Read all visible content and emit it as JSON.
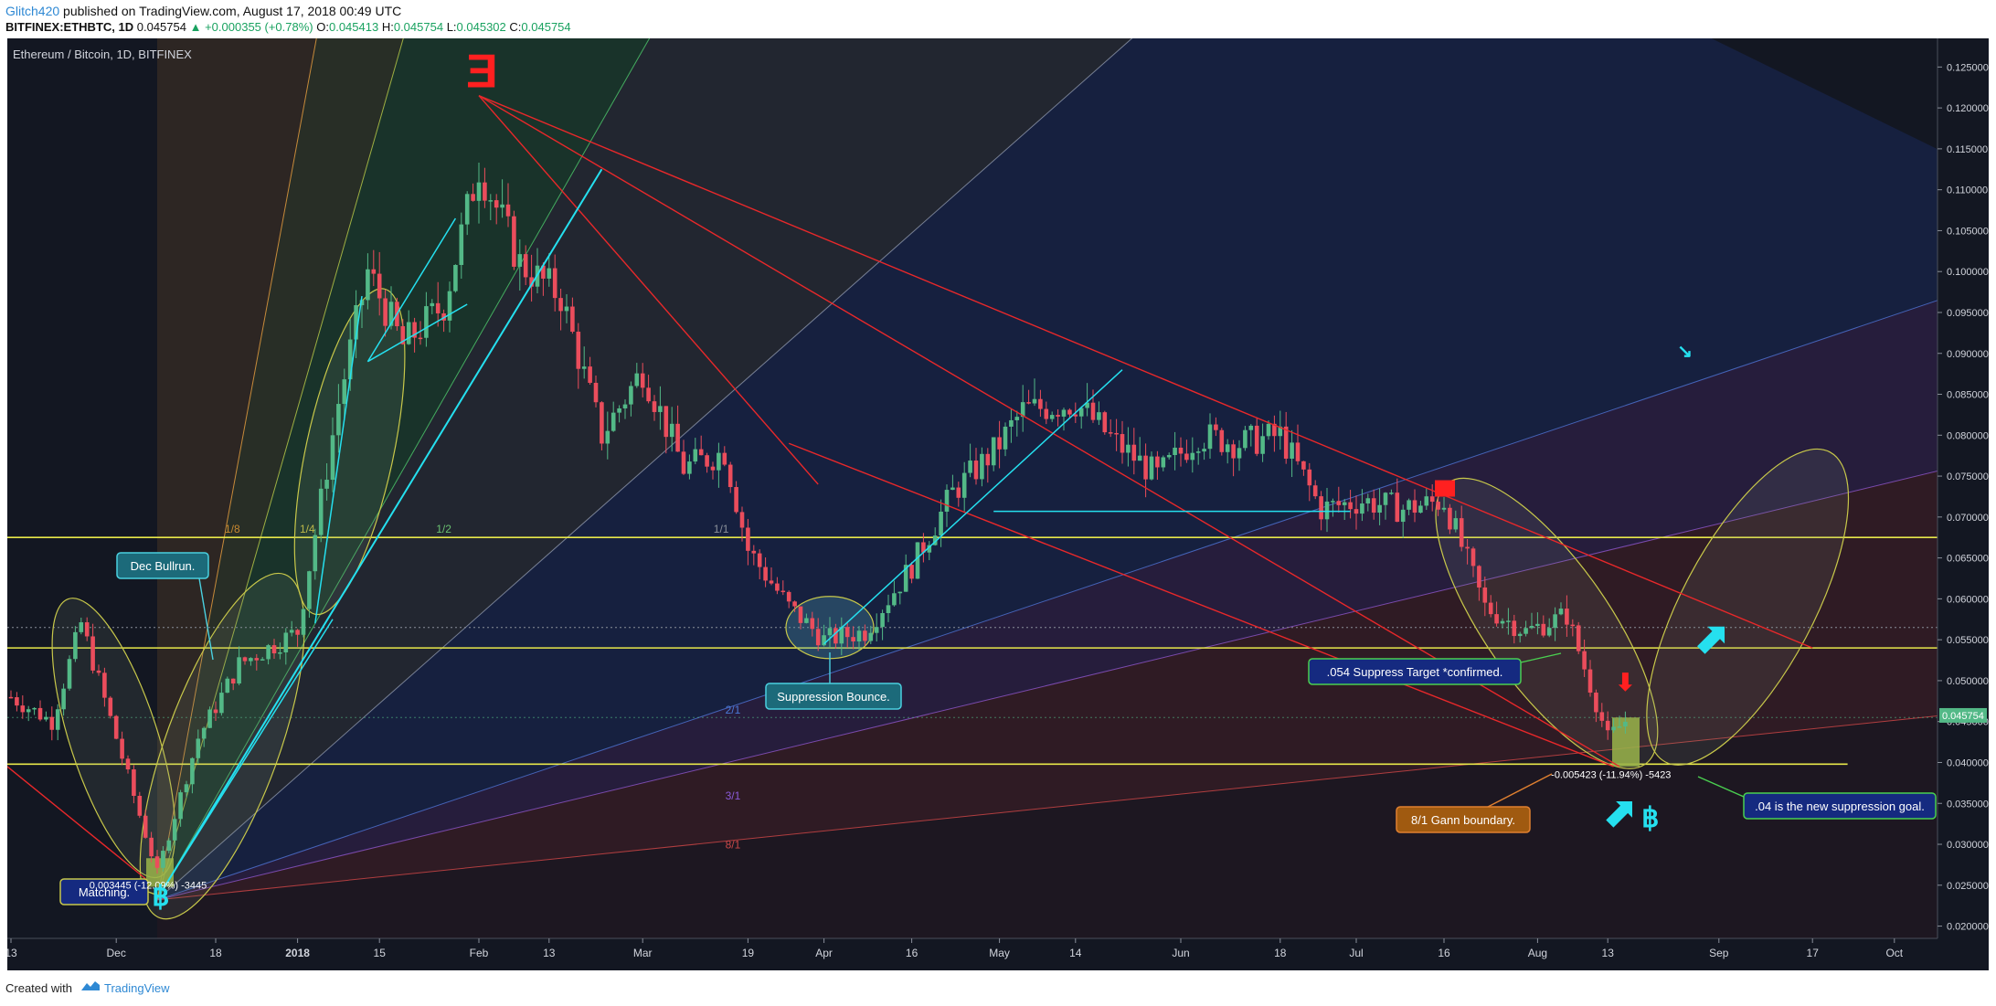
{
  "header": {
    "author": "Glitch420",
    "published_text": "published on TradingView.com, August 17, 2018 00:49 UTC",
    "symbol": "BITFINEX:ETHBTC, 1D",
    "last": "0.045754",
    "change": "▲ +0.000355 (+0.78%)",
    "o_label": "O:",
    "o_value": "0.045413",
    "h_label": "H:",
    "h_value": "0.045754",
    "l_label": "L:",
    "l_value": "0.045302",
    "c_label": "C:",
    "c_value": "0.045754"
  },
  "chart_data": {
    "type": "candlestick",
    "title": "Ethereum / Bitcoin, 1D, BITFINEX",
    "y_ticks": [
      "0.125000",
      "0.120000",
      "0.115000",
      "0.110000",
      "0.105000",
      "0.100000",
      "0.095000",
      "0.090000",
      "0.085000",
      "0.080000",
      "0.075000",
      "0.070000",
      "0.065000",
      "0.060000",
      "0.055000",
      "0.050000",
      "0.045000",
      "0.040000",
      "0.035000",
      "0.030000",
      "0.025000",
      "0.020000"
    ],
    "ylim": [
      0.0185,
      0.1285
    ],
    "x_ticks": [
      "13",
      "Dec",
      "18",
      "2018",
      "15",
      "Feb",
      "13",
      "Mar",
      "19",
      "Apr",
      "16",
      "May",
      "14",
      "Jun",
      "18",
      "Jul",
      "16",
      "Aug",
      "13",
      "Sep",
      "17",
      "Oct"
    ],
    "price_tag": "0.045754",
    "fan_labels": [
      "1/8",
      "1/4",
      "1/2",
      "1/1",
      "2/1",
      "3/1",
      "8/1"
    ],
    "horizontal_levels": [
      0.0675,
      0.054,
      0.0398
    ],
    "series": [
      {
        "date": "2017-11-13",
        "close": 0.048
      },
      {
        "date": "2017-11-20",
        "close": 0.045
      },
      {
        "date": "2017-11-25",
        "close": 0.057
      },
      {
        "date": "2017-12-01",
        "close": 0.043
      },
      {
        "date": "2017-12-08",
        "close": 0.0265
      },
      {
        "date": "2017-12-15",
        "close": 0.043
      },
      {
        "date": "2017-12-22",
        "close": 0.052
      },
      {
        "date": "2018-01-01",
        "close": 0.056
      },
      {
        "date": "2018-01-08",
        "close": 0.084
      },
      {
        "date": "2018-01-13",
        "close": 0.1
      },
      {
        "date": "2018-01-19",
        "close": 0.091
      },
      {
        "date": "2018-01-26",
        "close": 0.096
      },
      {
        "date": "2018-02-01",
        "close": 0.113
      },
      {
        "date": "2018-02-08",
        "close": 0.101
      },
      {
        "date": "2018-02-15",
        "close": 0.097
      },
      {
        "date": "2018-02-22",
        "close": 0.08
      },
      {
        "date": "2018-03-01",
        "close": 0.088
      },
      {
        "date": "2018-03-08",
        "close": 0.076
      },
      {
        "date": "2018-03-15",
        "close": 0.078
      },
      {
        "date": "2018-03-19",
        "close": 0.066
      },
      {
        "date": "2018-03-26",
        "close": 0.059
      },
      {
        "date": "2018-04-01",
        "close": 0.055
      },
      {
        "date": "2018-04-08",
        "close": 0.056
      },
      {
        "date": "2018-04-16",
        "close": 0.064
      },
      {
        "date": "2018-04-23",
        "close": 0.073
      },
      {
        "date": "2018-04-30",
        "close": 0.078
      },
      {
        "date": "2018-05-05",
        "close": 0.083
      },
      {
        "date": "2018-05-14",
        "close": 0.084
      },
      {
        "date": "2018-05-21",
        "close": 0.079
      },
      {
        "date": "2018-05-28",
        "close": 0.075
      },
      {
        "date": "2018-06-04",
        "close": 0.08
      },
      {
        "date": "2018-06-11",
        "close": 0.079
      },
      {
        "date": "2018-06-18",
        "close": 0.08
      },
      {
        "date": "2018-06-25",
        "close": 0.071
      },
      {
        "date": "2018-07-02",
        "close": 0.072
      },
      {
        "date": "2018-07-09",
        "close": 0.071
      },
      {
        "date": "2018-07-16",
        "close": 0.072
      },
      {
        "date": "2018-07-23",
        "close": 0.059
      },
      {
        "date": "2018-07-30",
        "close": 0.056
      },
      {
        "date": "2018-08-06",
        "close": 0.058
      },
      {
        "date": "2018-08-13",
        "close": 0.043
      },
      {
        "date": "2018-08-17",
        "close": 0.045754
      }
    ],
    "annotations": {
      "dec_bullrun": "Dec Bullrun.",
      "suppression_bounce": "Suppression Bounce.",
      "suppress_target": ".054 Suppress Target *confirmed.",
      "gann_boundary": "8/1 Gann boundary.",
      "new_goal": ".04 is the new suppression goal.",
      "matching": "Matching.",
      "measure_1": "-0.005423 (-11.94%) -5423",
      "measure_2": "0.003445 (-12.09%) -3445"
    }
  },
  "footer": {
    "created_with": "Created with",
    "brand": "TradingView"
  },
  "colors": {
    "bg": "#131722",
    "up": "#53b987",
    "down": "#eb4d5c",
    "level": "#e8e84a",
    "trend": "#e8282a",
    "cyan": "#25e0ef"
  }
}
